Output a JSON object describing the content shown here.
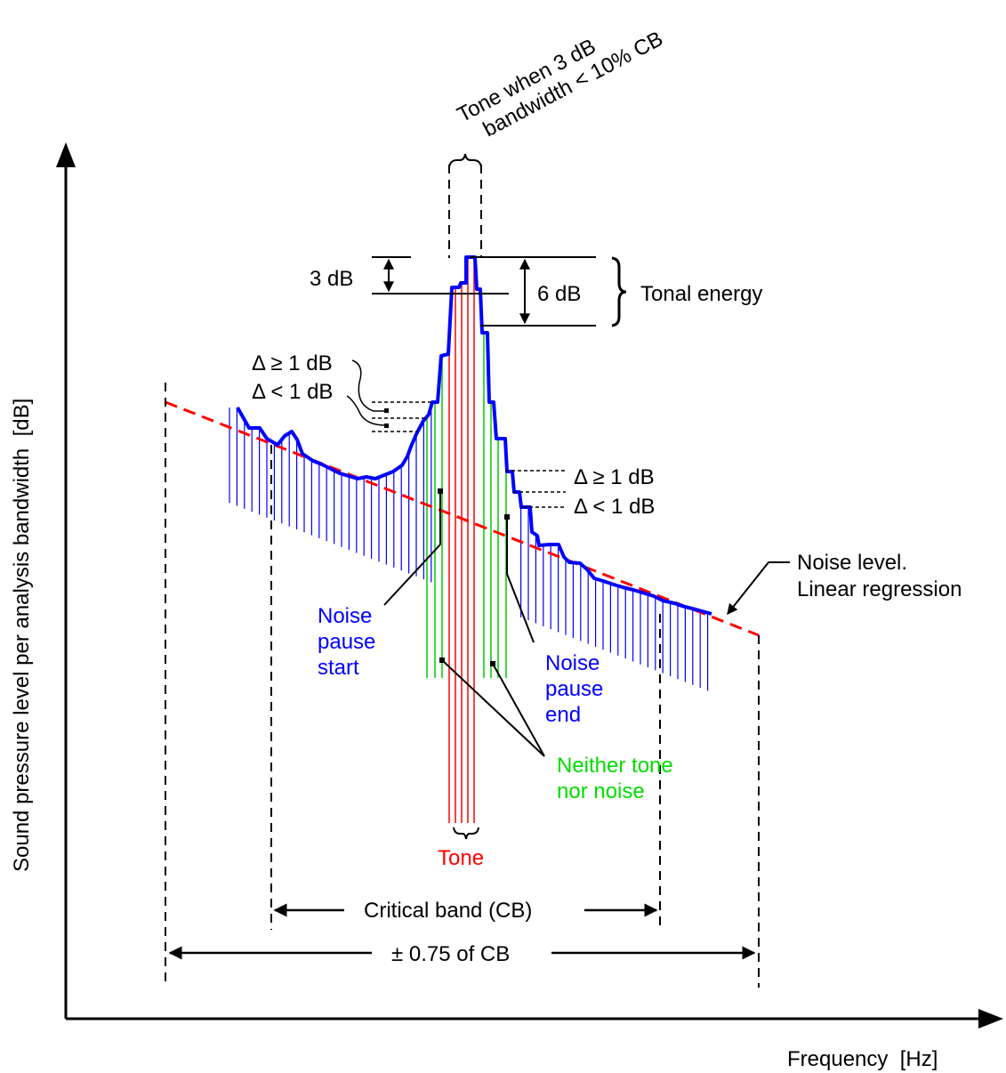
{
  "axes": {
    "y_label": "Sound pressure level per analysis bandwidth  [dB]",
    "x_label": "Frequency  [Hz]"
  },
  "annotations": {
    "tone_bandwidth_line1": "Tone when 3 dB",
    "tone_bandwidth_line2": "bandwidth < 10% CB",
    "three_db": "3 dB",
    "six_db": "6 dB",
    "tonal_energy": "Tonal energy",
    "delta_ge_left": "Δ ≥ 1 dB",
    "delta_lt_left": "Δ < 1 dB",
    "delta_ge_right": "Δ ≥ 1 dB",
    "delta_lt_right": "Δ < 1 dB",
    "noise_level_line1": "Noise level.",
    "noise_level_line2": "Linear regression",
    "noise_pause_start": [
      "Noise",
      "pause",
      "start"
    ],
    "noise_pause_end": [
      "Noise",
      "pause",
      "end"
    ],
    "neither": [
      "Neither tone",
      "nor noise"
    ],
    "tone": "Tone",
    "critical_band": "Critical band (CB)",
    "cb_range": "± 0.75 of CB"
  },
  "colors": {
    "axis": "#000000",
    "spectrum": "#0000ff",
    "noise_regression": "#ff0000",
    "tone": "#ff0000",
    "neither": "#00cc00",
    "noise_lines": "#0000ff",
    "label_blue": "#0000ff",
    "label_green": "#00dd00",
    "label_red": "#ff0000"
  }
}
